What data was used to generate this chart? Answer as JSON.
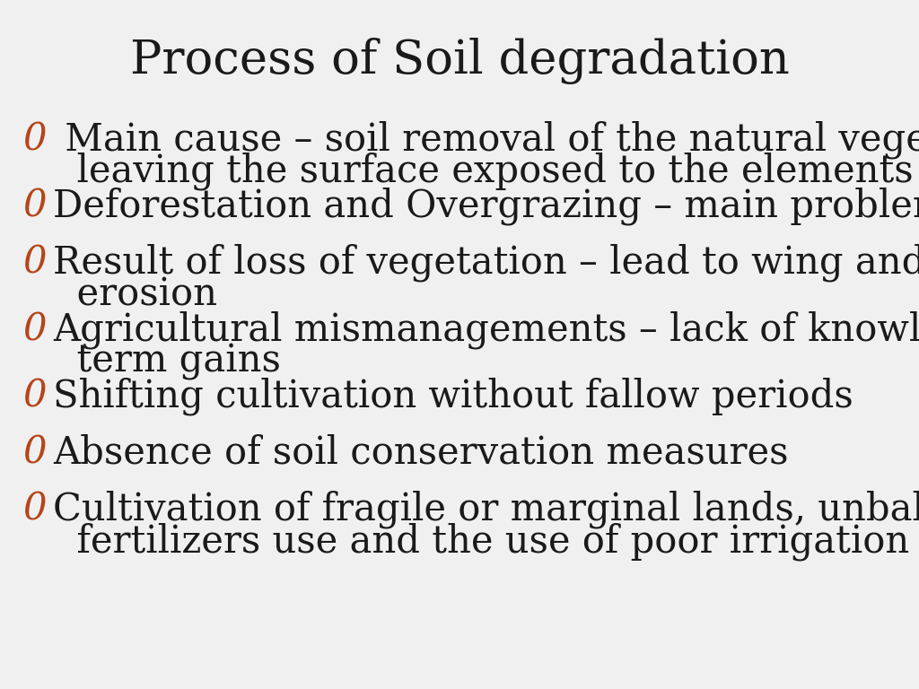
{
  "title": "Process of Soil degradation",
  "title_fontsize": 38,
  "title_color": "#1a1a1a",
  "title_font": "serif",
  "background_color": "#f0f0f0",
  "bullet_color": "#b5451b",
  "text_color": "#1a1a1a",
  "bullet_char": "0",
  "bullet_fontsize": 30,
  "text_fontsize": 30,
  "items": [
    {
      "line1": " Main cause – soil removal of the natural vegetation cover,",
      "line2": "  leaving the surface exposed to the elements",
      "two_lines": true
    },
    {
      "line1": "Deforestation and Overgrazing – main problems",
      "two_lines": false
    },
    {
      "line1": "Result of loss of vegetation – lead to wing and water",
      "line2": "  erosion",
      "two_lines": true
    },
    {
      "line1": "Agricultural mismanagements – lack of knowledge, short",
      "line2": "  term gains",
      "two_lines": true
    },
    {
      "line1": "Shifting cultivation without fallow periods",
      "two_lines": false
    },
    {
      "line1": "Absence of soil conservation measures",
      "two_lines": false
    },
    {
      "line1": "Cultivation of fragile or marginal lands, unbalanced",
      "line2": "  fertilizers use and the use of poor irrigation techniques",
      "two_lines": true
    }
  ]
}
